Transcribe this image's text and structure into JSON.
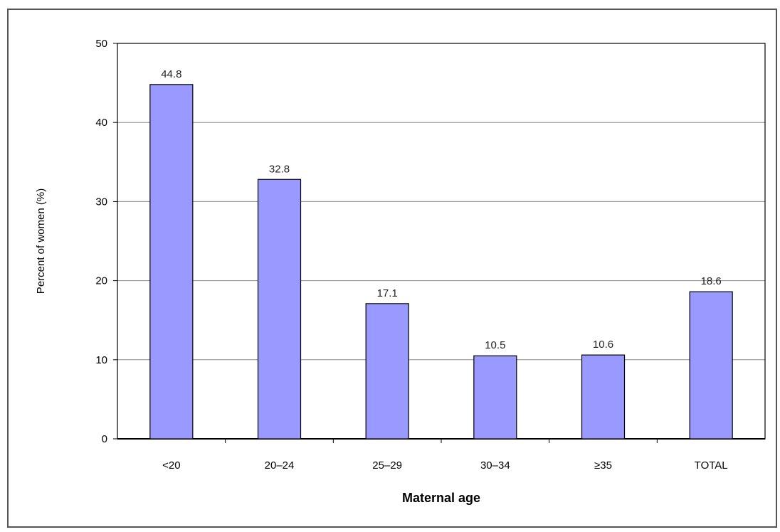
{
  "chart_data": {
    "type": "bar",
    "categories": [
      "<20",
      "20–24",
      "25–29",
      "30–34",
      "≥35",
      "TOTAL"
    ],
    "values": [
      44.8,
      32.8,
      17.1,
      10.5,
      10.6,
      18.6
    ],
    "data_labels": [
      "44.8",
      "32.8",
      "17.1",
      "10.5",
      "10.6",
      "18.6"
    ],
    "xlabel": "Maternal age",
    "ylabel": "Percent of women (%)",
    "ylim": [
      0,
      50
    ],
    "yticks": [
      0,
      10,
      20,
      30,
      40,
      50
    ],
    "grid": true,
    "bar_color": "#9999ff",
    "bar_edge_color": "#000000"
  }
}
